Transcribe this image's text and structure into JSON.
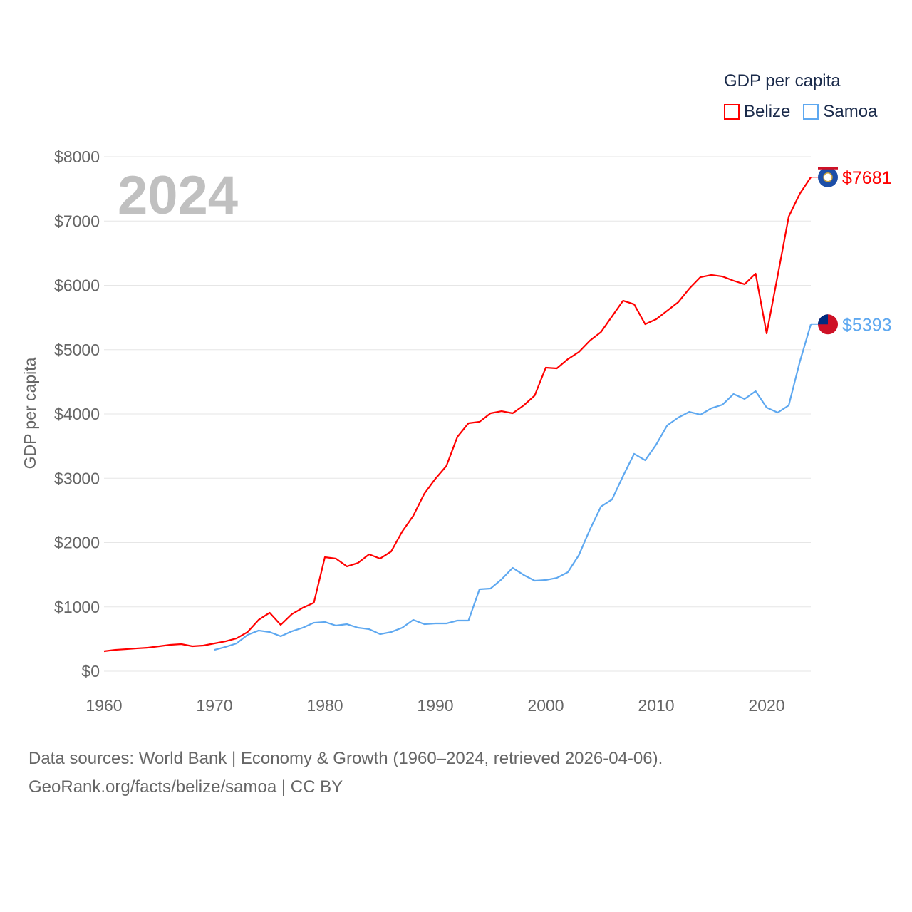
{
  "chart_data": {
    "type": "line",
    "title": "GDP per capita",
    "year_label": "2024",
    "xlabel": "",
    "ylabel": "GDP per capita",
    "xlim": [
      1960,
      2024
    ],
    "ylim": [
      0,
      8000
    ],
    "x_ticks": [
      "1960",
      "1970",
      "1980",
      "1990",
      "2000",
      "2010",
      "2020"
    ],
    "y_ticks": [
      "$0",
      "$1000",
      "$2000",
      "$3000",
      "$4000",
      "$5000",
      "$6000",
      "$7000",
      "$8000"
    ],
    "grid": true,
    "legend_placement": "top-right",
    "series": [
      {
        "name": "Belize",
        "color": "#ff0000",
        "end_label": "$7681",
        "start_year": 1960,
        "values": [
          310,
          332,
          343,
          355,
          366,
          388,
          410,
          421,
          388,
          399,
          432,
          465,
          510,
          609,
          798,
          909,
          720,
          886,
          986,
          1064,
          1773,
          1751,
          1629,
          1684,
          1817,
          1751,
          1861,
          2172,
          2415,
          2759,
          2992,
          3191,
          3645,
          3856,
          3878,
          4011,
          4044,
          4011,
          4133,
          4288,
          4720,
          4709,
          4853,
          4964,
          5141,
          5274,
          5518,
          5762,
          5706,
          5396,
          5474,
          5607,
          5740,
          5950,
          6127,
          6161,
          6138,
          6072,
          6017,
          6183,
          5252,
          6150,
          7069,
          7424,
          7681
        ]
      },
      {
        "name": "Samoa",
        "color": "#5ea8f0",
        "end_label": "$5393",
        "start_year": 1970,
        "values": [
          332,
          377,
          432,
          565,
          632,
          609,
          543,
          620,
          676,
          753,
          765,
          709,
          731,
          676,
          654,
          576,
          609,
          676,
          798,
          731,
          742,
          742,
          787,
          787,
          1274,
          1285,
          1429,
          1607,
          1496,
          1407,
          1418,
          1451,
          1540,
          1806,
          2205,
          2560,
          2670,
          3036,
          3380,
          3280,
          3524,
          3823,
          3945,
          4033,
          3989,
          4089,
          4144,
          4310,
          4233,
          4355,
          4100,
          4022,
          4133,
          4809,
          5393
        ]
      }
    ]
  },
  "footer": {
    "line1": "Data sources: World Bank | Economy & Growth (1960–2024, retrieved 2026-04-06).",
    "line2": "GeoRank.org/facts/belize/samoa | CC BY"
  }
}
